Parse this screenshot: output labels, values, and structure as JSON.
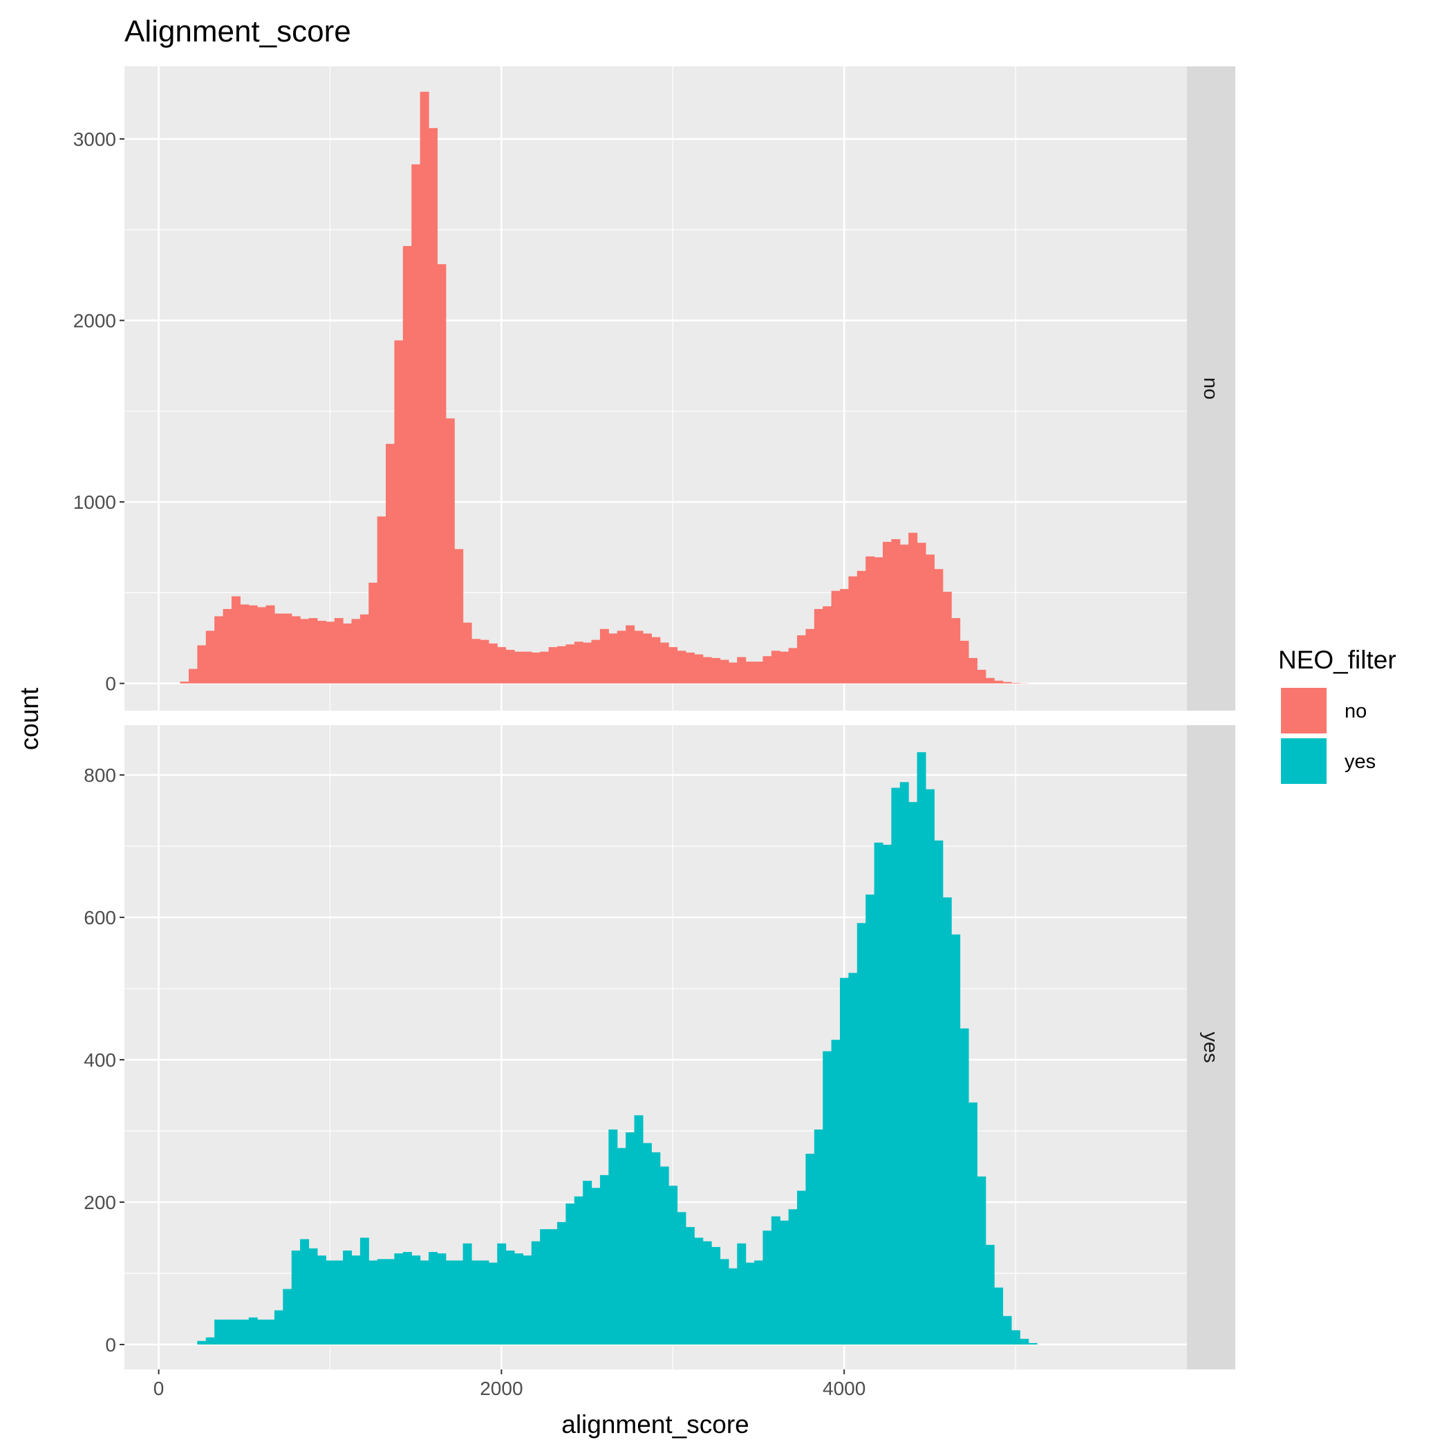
{
  "chart_data": {
    "type": "bar",
    "title": "Alignment_score",
    "xlabel": "alignment_score",
    "ylabel": "count",
    "xlim": [
      -200,
      6000
    ],
    "x_ticks": [
      0,
      2000,
      4000
    ],
    "x_tick_labels": [
      "0",
      "2000",
      "4000"
    ],
    "bin_width": 50,
    "bin_start": 75,
    "legend": {
      "title": "NEO_filter",
      "position": "right",
      "entries": [
        {
          "label": "no",
          "color": "#F8766D"
        },
        {
          "label": "yes",
          "color": "#00BFC4"
        }
      ]
    },
    "panels": [
      {
        "strip_label": "no",
        "color": "#F8766D",
        "ylim": [
          -150,
          3400
        ],
        "y_ticks": [
          0,
          1000,
          2000,
          3000
        ],
        "y_tick_labels": [
          "0",
          "1000",
          "2000",
          "3000"
        ],
        "values": [
          0,
          10,
          80,
          210,
          290,
          370,
          410,
          480,
          435,
          430,
          420,
          430,
          385,
          385,
          370,
          355,
          360,
          345,
          340,
          360,
          330,
          355,
          380,
          555,
          920,
          1320,
          1890,
          2410,
          2860,
          3260,
          3060,
          2310,
          1460,
          740,
          335,
          245,
          240,
          220,
          200,
          185,
          175,
          175,
          170,
          175,
          200,
          205,
          215,
          230,
          225,
          240,
          300,
          275,
          290,
          320,
          290,
          275,
          255,
          225,
          200,
          180,
          170,
          160,
          145,
          140,
          130,
          115,
          145,
          120,
          120,
          150,
          180,
          175,
          195,
          265,
          300,
          410,
          425,
          510,
          520,
          590,
          620,
          700,
          695,
          780,
          795,
          765,
          830,
          775,
          710,
          630,
          505,
          360,
          235,
          140,
          75,
          30,
          15,
          8,
          3,
          1
        ]
      },
      {
        "strip_label": "yes",
        "color": "#00BFC4",
        "ylim": [
          -35,
          870
        ],
        "y_ticks": [
          0,
          200,
          400,
          600,
          800
        ],
        "y_tick_labels": [
          "0",
          "200",
          "400",
          "600",
          "800"
        ],
        "values": [
          0,
          0,
          0,
          5,
          10,
          35,
          35,
          35,
          35,
          38,
          35,
          35,
          48,
          78,
          132,
          148,
          135,
          125,
          118,
          118,
          132,
          125,
          150,
          118,
          120,
          120,
          128,
          130,
          125,
          118,
          130,
          128,
          118,
          118,
          142,
          118,
          118,
          115,
          142,
          132,
          128,
          125,
          145,
          162,
          162,
          172,
          198,
          208,
          230,
          220,
          238,
          302,
          276,
          298,
          322,
          283,
          270,
          250,
          223,
          186,
          165,
          150,
          145,
          137,
          120,
          107,
          142,
          115,
          118,
          160,
          180,
          174,
          190,
          216,
          268,
          302,
          412,
          428,
          515,
          522,
          592,
          632,
          705,
          702,
          782,
          790,
          762,
          832,
          780,
          708,
          628,
          576,
          444,
          340,
          236,
          140,
          80,
          40,
          20,
          8,
          2
        ]
      }
    ]
  }
}
